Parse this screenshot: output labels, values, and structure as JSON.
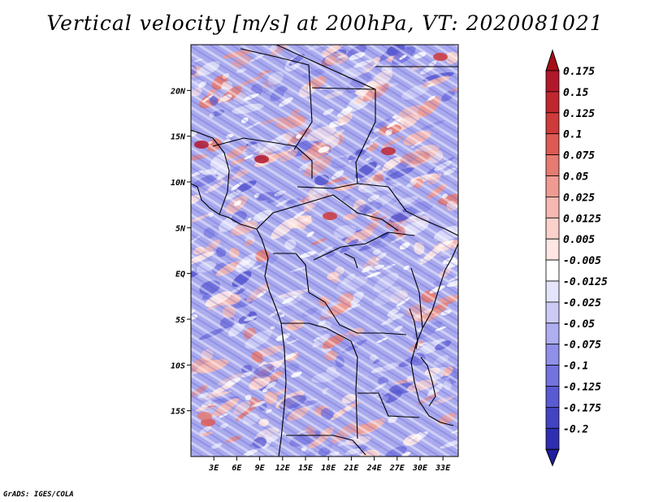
{
  "title": "Vertical velocity [m/s] at 200hPa, VT: 2020081021",
  "credit": "GrADS: IGES/COLA",
  "map": {
    "lon_range": [
      0,
      35
    ],
    "lat_range": [
      -20,
      25
    ],
    "lon_ticks": [
      {
        "value": 3,
        "label": "3E"
      },
      {
        "value": 6,
        "label": "6E"
      },
      {
        "value": 9,
        "label": "9E"
      },
      {
        "value": 12,
        "label": "12E"
      },
      {
        "value": 15,
        "label": "15E"
      },
      {
        "value": 18,
        "label": "18E"
      },
      {
        "value": 21,
        "label": "21E"
      },
      {
        "value": 24,
        "label": "24E"
      },
      {
        "value": 27,
        "label": "27E"
      },
      {
        "value": 30,
        "label": "30E"
      },
      {
        "value": 33,
        "label": "33E"
      }
    ],
    "lat_ticks": [
      {
        "value": 20,
        "label": "20N"
      },
      {
        "value": 15,
        "label": "15N"
      },
      {
        "value": 10,
        "label": "10N"
      },
      {
        "value": 5,
        "label": "5N"
      },
      {
        "value": 0,
        "label": "EQ"
      },
      {
        "value": -5,
        "label": "5S"
      },
      {
        "value": -10,
        "label": "10S"
      },
      {
        "value": -15,
        "label": "15S"
      }
    ]
  },
  "colorbar": {
    "levels": [
      {
        "label": "0.175",
        "color": "#b2182b"
      },
      {
        "label": "0.15",
        "color": "#c0272f"
      },
      {
        "label": "0.125",
        "color": "#cf3a3a"
      },
      {
        "label": "0.1",
        "color": "#dd5a53"
      },
      {
        "label": "0.075",
        "color": "#e67b71"
      },
      {
        "label": "0.05",
        "color": "#ef9b92"
      },
      {
        "label": "0.025",
        "color": "#f6b8b0"
      },
      {
        "label": "0.0125",
        "color": "#fad1cb"
      },
      {
        "label": "0.005",
        "color": "#fde6e3"
      },
      {
        "label": "-0.005",
        "color": "#ffffff"
      },
      {
        "label": "-0.0125",
        "color": "#e4e4fb"
      },
      {
        "label": "-0.025",
        "color": "#cbcbf6"
      },
      {
        "label": "-0.05",
        "color": "#aeaef0"
      },
      {
        "label": "-0.075",
        "color": "#9090e8"
      },
      {
        "label": "-0.1",
        "color": "#7373de"
      },
      {
        "label": "-0.125",
        "color": "#5a5ad2"
      },
      {
        "label": "-0.175",
        "color": "#4343c3"
      },
      {
        "label": "-0.2",
        "color": "#2e2eb0"
      }
    ],
    "top_color": "#a50f15",
    "bottom_color": "#1f1f9e"
  }
}
